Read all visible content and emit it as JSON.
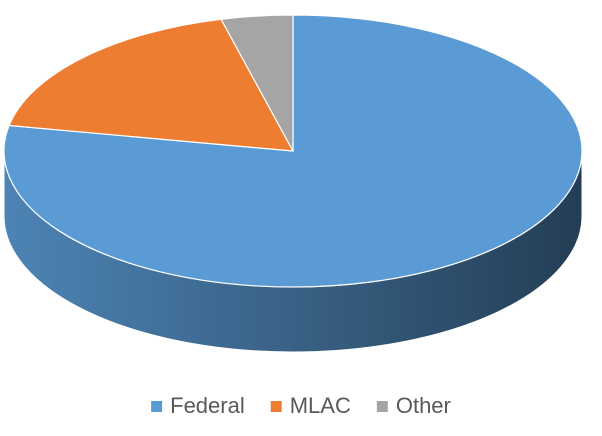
{
  "chart_data": {
    "type": "pie",
    "categories": [
      "Federal",
      "MLAC",
      "Other"
    ],
    "values": [
      78,
      18,
      4
    ],
    "colors": [
      "#5b9bd5",
      "#ed7d31",
      "#a5a5a5"
    ],
    "legend": "bottom"
  }
}
